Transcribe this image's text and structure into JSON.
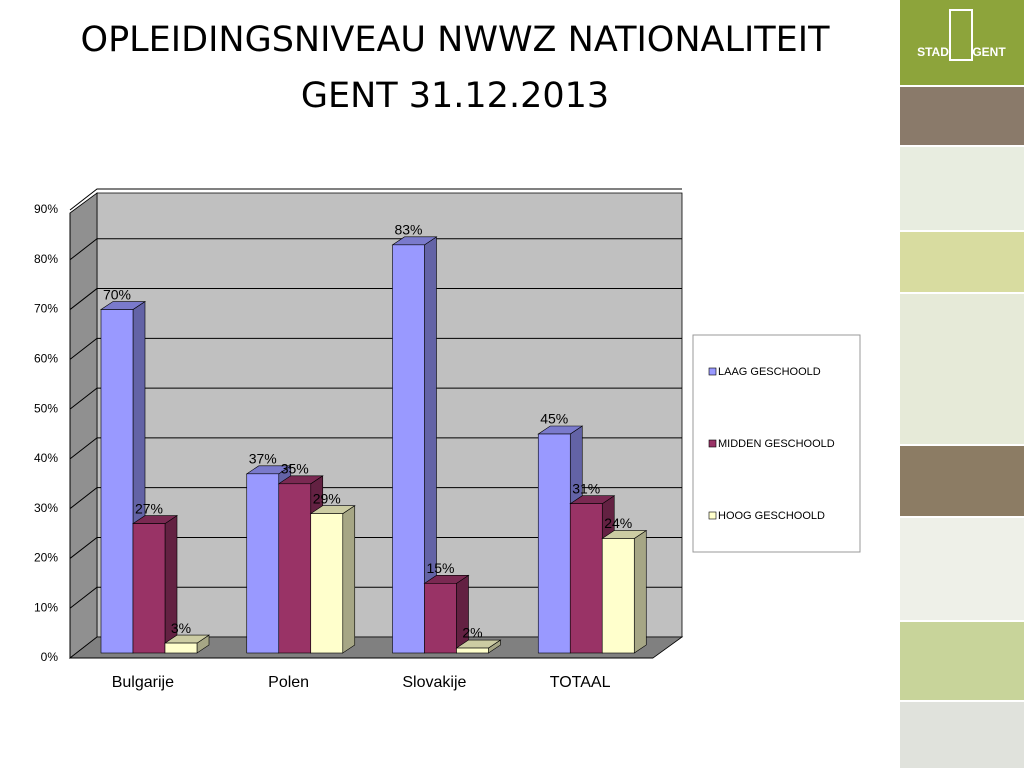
{
  "chart_data": {
    "type": "bar3d",
    "title": "OPLEIDINGSNIVEAU NWWZ NATIONALITEIT GENT 31.12.2013",
    "categories": [
      "Bulgarije",
      "Polen",
      "Slovakije",
      "TOTAAL"
    ],
    "series": [
      {
        "name": "LAAG GESCHOOLD",
        "color": "#9999ff",
        "values": [
          70,
          37,
          83,
          45
        ],
        "value_labels": [
          "70%",
          "37%",
          "83%",
          "45%"
        ]
      },
      {
        "name": "MIDDEN GESCHOOLD",
        "color": "#993366",
        "values": [
          27,
          35,
          15,
          31
        ],
        "value_labels": [
          "27%",
          "35%",
          "15%",
          "31%"
        ]
      },
      {
        "name": "HOOG GESCHOOLD",
        "color": "#ffffcc",
        "values": [
          3,
          29,
          2,
          24
        ],
        "value_labels": [
          "3%",
          "29%",
          "2%",
          "24%"
        ]
      }
    ],
    "ylim": [
      0,
      90
    ],
    "yticks": [
      {
        "value": 0,
        "label": "0%"
      },
      {
        "value": 10,
        "label": "10%"
      },
      {
        "value": 20,
        "label": "20%"
      },
      {
        "value": 30,
        "label": "30%"
      },
      {
        "value": 40,
        "label": "40%"
      },
      {
        "value": 50,
        "label": "50%"
      },
      {
        "value": 60,
        "label": "60%"
      },
      {
        "value": 70,
        "label": "70%"
      },
      {
        "value": 80,
        "label": "80%"
      },
      {
        "value": 90,
        "label": "90%"
      }
    ],
    "grid": true,
    "legend": "right"
  },
  "logo": {
    "left": "STAD",
    "right": "GENT"
  }
}
